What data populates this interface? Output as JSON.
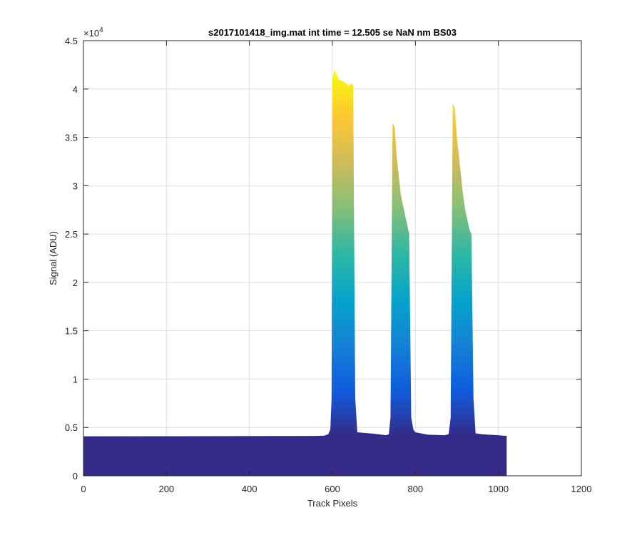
{
  "chart_data": {
    "type": "area",
    "title": "s2017101418_img.mat int time = 12.505 se  NaN nm BS03",
    "xlabel": "Track Pixels",
    "ylabel": "Signal (ADU)",
    "xlim": [
      0,
      1200
    ],
    "ylim": [
      0,
      45000
    ],
    "xticks": [
      0,
      200,
      400,
      600,
      800,
      1000,
      1200
    ],
    "xtick_labels": [
      "0",
      "200",
      "400",
      "600",
      "800",
      "1000",
      "1200"
    ],
    "yticks": [
      0,
      5000,
      10000,
      15000,
      20000,
      25000,
      30000,
      35000,
      40000,
      45000
    ],
    "ytick_labels": [
      "0",
      "0.5",
      "1",
      "1.5",
      "2",
      "2.5",
      "3",
      "3.5",
      "4",
      "4.5"
    ],
    "y_exponent_label": "×10",
    "y_exponent_power": "4",
    "grid": true,
    "baseline": 4050,
    "colormap": [
      "#352a87",
      "#0f5cdd",
      "#1481d6",
      "#06a4ca",
      "#2eb7a4",
      "#87bf77",
      "#d1bb59",
      "#fec832",
      "#f9fb0e"
    ],
    "series": [
      {
        "x": [
          0,
          100,
          200,
          300,
          400,
          500,
          550,
          580,
          590,
          595,
          598,
          600,
          605,
          615,
          625,
          635,
          640,
          645,
          650,
          655,
          660,
          700,
          730,
          736,
          740,
          745,
          750,
          755,
          760,
          765,
          770,
          775,
          780,
          785,
          790,
          795,
          800,
          830,
          870,
          880,
          885,
          890,
          895,
          900,
          905,
          910,
          915,
          920,
          925,
          930,
          935,
          940,
          945,
          960,
          1000,
          1020
        ],
        "y": [
          4050,
          4050,
          4050,
          4060,
          4060,
          4080,
          4100,
          4150,
          4300,
          4800,
          8000,
          41000,
          42000,
          41000,
          40800,
          40500,
          40300,
          40600,
          40400,
          8000,
          4500,
          4350,
          4200,
          4300,
          6000,
          36500,
          36000,
          33000,
          31000,
          29000,
          28000,
          27000,
          26000,
          25000,
          6000,
          4800,
          4500,
          4250,
          4200,
          4300,
          6000,
          38500,
          38000,
          35000,
          33000,
          31000,
          29000,
          27500,
          26500,
          25500,
          25000,
          8000,
          4400,
          4300,
          4200,
          4100
        ]
      }
    ]
  }
}
